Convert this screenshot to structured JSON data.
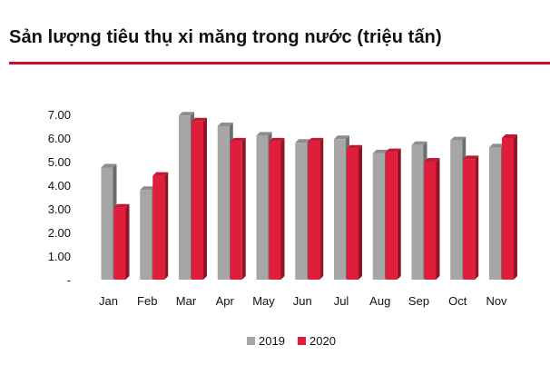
{
  "title": "Sản lượng tiêu thụ xi măng trong nước (triệu tấn)",
  "colors": {
    "rule": "#c8102e",
    "series_2019": "#a6a6a6",
    "series_2020": "#e01e3c"
  },
  "chart_data": {
    "type": "bar",
    "title": "Sản lượng tiêu thụ xi măng trong nước (triệu tấn)",
    "categories": [
      "Jan",
      "Feb",
      "Mar",
      "Apr",
      "May",
      "Jun",
      "Jul",
      "Aug",
      "Sep",
      "Oct",
      "Nov"
    ],
    "series": [
      {
        "name": "2019",
        "values": [
          4.75,
          3.8,
          6.95,
          6.5,
          6.1,
          5.8,
          5.95,
          5.35,
          5.7,
          5.9,
          5.6
        ]
      },
      {
        "name": "2020",
        "values": [
          3.05,
          4.4,
          6.7,
          5.85,
          5.85,
          5.85,
          5.55,
          5.4,
          5.0,
          5.1,
          6.0
        ]
      }
    ],
    "y_ticks": [
      "-",
      "1.00",
      "2.00",
      "3.00",
      "4.00",
      "5.00",
      "6.00",
      "7.00"
    ],
    "ylim": [
      0,
      7
    ],
    "grid": false,
    "legend_position": "bottom-center",
    "style": "3d-bars"
  }
}
